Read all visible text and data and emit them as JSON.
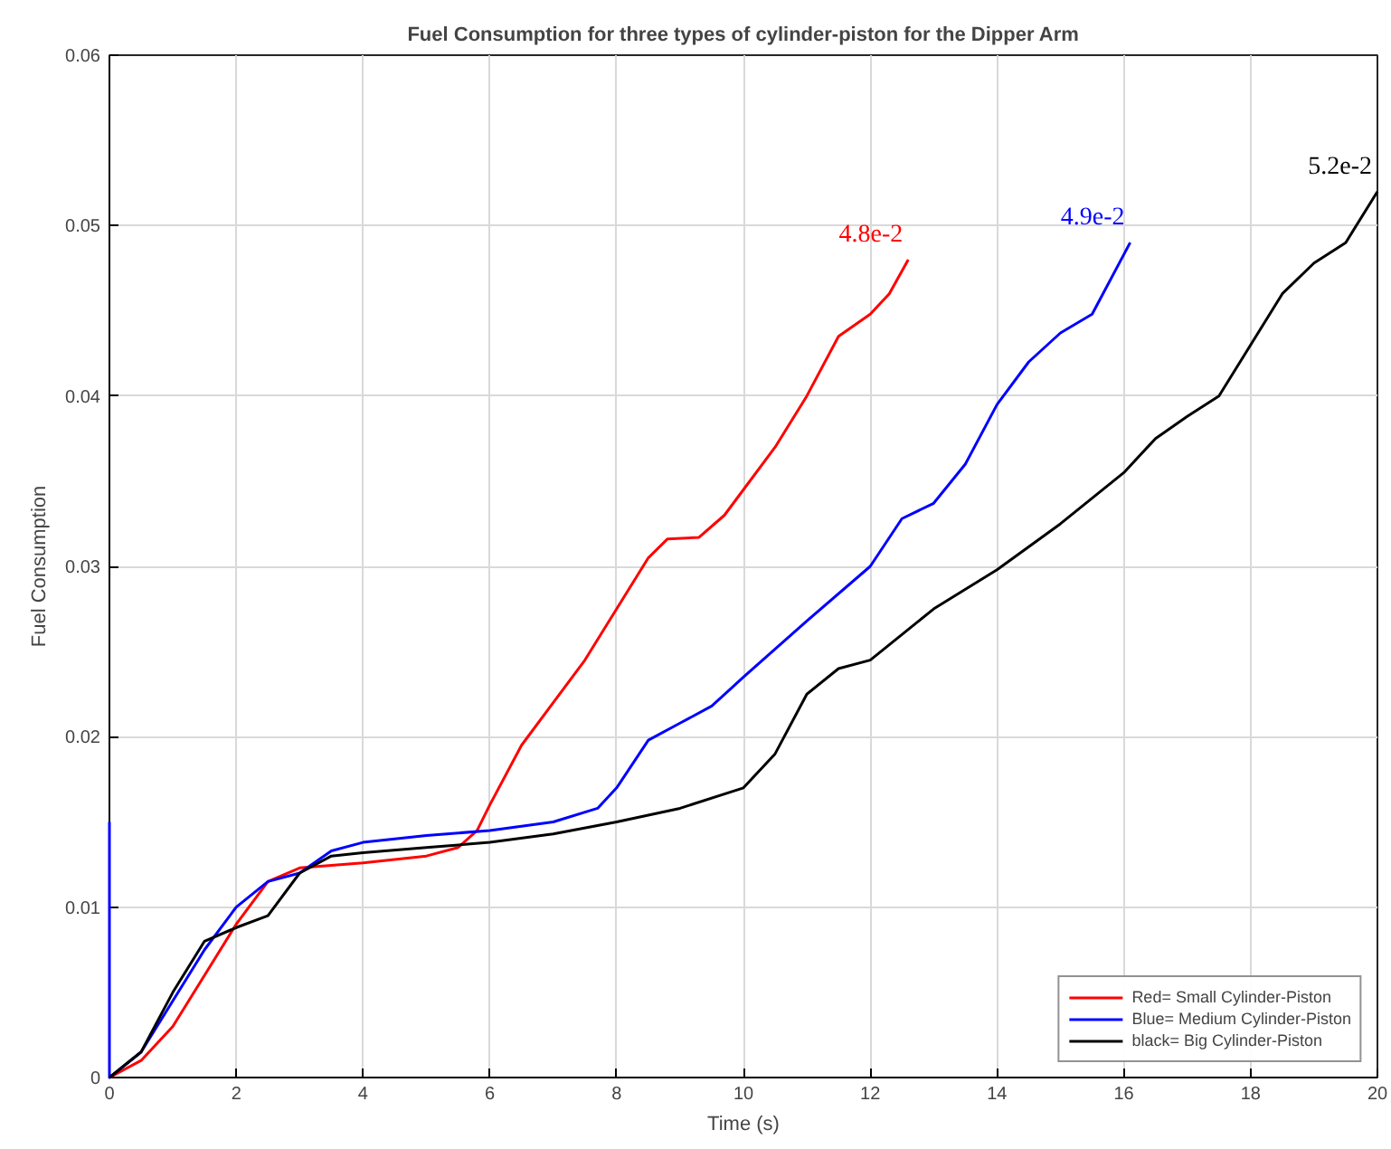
{
  "chart_data": {
    "type": "line",
    "title": "Fuel Consumption for three types of cylinder-piston for the Dipper Arm",
    "xlabel": "Time (s)",
    "ylabel": "Fuel Consumption",
    "xlim": [
      0,
      20
    ],
    "ylim": [
      0,
      0.06
    ],
    "xticks": [
      0,
      2,
      4,
      6,
      8,
      10,
      12,
      14,
      16,
      18,
      20
    ],
    "yticks": [
      0,
      0.01,
      0.02,
      0.03,
      0.04,
      0.05,
      0.06
    ],
    "grid": true,
    "legend": "bottom right",
    "line_style": "solid",
    "marker": "none",
    "series": [
      {
        "name": "Red= Small Cylinder-Piston",
        "color": "#ff0000",
        "x": [
          0,
          0.5,
          1,
          1.5,
          2,
          2.5,
          3,
          4,
          5,
          5.5,
          5.8,
          6,
          6.5,
          7,
          7.5,
          8,
          8.5,
          8.8,
          9.3,
          9.7,
          10,
          10.5,
          11,
          11.5,
          12,
          12.3,
          12.6
        ],
        "values": [
          0,
          0.001,
          0.003,
          0.006,
          0.009,
          0.0115,
          0.0123,
          0.0126,
          0.013,
          0.0135,
          0.0145,
          0.016,
          0.0195,
          0.022,
          0.0245,
          0.0275,
          0.0305,
          0.0316,
          0.0317,
          0.033,
          0.0345,
          0.037,
          0.04,
          0.0435,
          0.0448,
          0.046,
          0.048
        ]
      },
      {
        "name": "Blue= Medium Cylinder-Piston",
        "color": "#0000ff",
        "x": [
          0,
          0,
          0.5,
          1,
          1.5,
          2,
          2.5,
          3,
          3.5,
          4,
          5,
          6,
          7,
          7.7,
          8,
          8.5,
          9,
          9.5,
          10,
          11,
          12,
          12.5,
          13,
          13.5,
          14,
          14.5,
          15,
          15.5,
          16.1
        ],
        "values": [
          0.015,
          0,
          0.0015,
          0.0045,
          0.0075,
          0.01,
          0.0115,
          0.012,
          0.0133,
          0.0138,
          0.0142,
          0.0145,
          0.015,
          0.0158,
          0.017,
          0.0198,
          0.0208,
          0.0218,
          0.0235,
          0.0268,
          0.03,
          0.0328,
          0.0337,
          0.036,
          0.0395,
          0.042,
          0.0437,
          0.0448,
          0.049
        ]
      },
      {
        "name": "black= Big Cylinder-Piston",
        "color": "#000000",
        "x": [
          0,
          0.5,
          1,
          1.5,
          2,
          2.5,
          3,
          3.5,
          4,
          5,
          6,
          7,
          8,
          9,
          10,
          10.5,
          11,
          11.5,
          12,
          12.5,
          13,
          14,
          15,
          16,
          16.5,
          17,
          17.5,
          18,
          18.5,
          19,
          19.5,
          20
        ],
        "values": [
          0,
          0.0015,
          0.005,
          0.008,
          0.0088,
          0.0095,
          0.012,
          0.013,
          0.0132,
          0.0135,
          0.0138,
          0.0143,
          0.015,
          0.0158,
          0.017,
          0.019,
          0.0225,
          0.024,
          0.0245,
          0.026,
          0.0275,
          0.0298,
          0.0325,
          0.0355,
          0.0375,
          0.0388,
          0.04,
          0.043,
          0.046,
          0.0478,
          0.049,
          0.052
        ]
      }
    ],
    "annotations": [
      {
        "text": "4.8e-2",
        "x": 12.6,
        "y": 0.048
      },
      {
        "text": "4.9e-2",
        "x": 16.1,
        "y": 0.049
      },
      {
        "text": "5.2e-2",
        "x": 20,
        "y": 0.052
      }
    ]
  }
}
